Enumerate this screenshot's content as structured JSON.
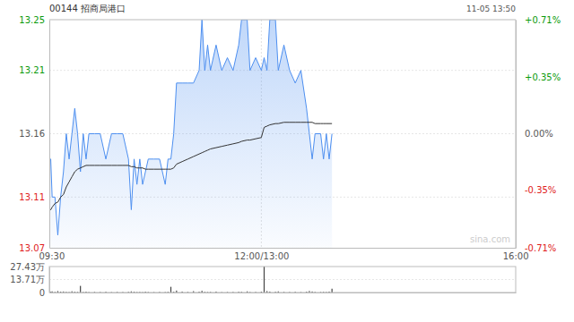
{
  "chart_data": [
    {
      "type": "line",
      "title": "00144 招商局港口",
      "subtitle": "11-05 13:50",
      "annotations": [
        "sina.com"
      ],
      "x": [
        0,
        1,
        2,
        4,
        6,
        8,
        10,
        12,
        14,
        16,
        18,
        20,
        22,
        24,
        26,
        28,
        32,
        36,
        40,
        44,
        48,
        52,
        56,
        58,
        60,
        62,
        64,
        66,
        68,
        70,
        74,
        78,
        82,
        84,
        86,
        88,
        90,
        94,
        98,
        102,
        106,
        108,
        110,
        112,
        114,
        118,
        122,
        126,
        130,
        134,
        136,
        140,
        142,
        146,
        150,
        152,
        154,
        156,
        160,
        162,
        166,
        170,
        174,
        178,
        182,
        184,
        186,
        188,
        192,
        194,
        196,
        198,
        200
      ],
      "xlim": [
        0,
        330
      ],
      "xticks": [
        {
          "value": 0,
          "label": "09:30"
        },
        {
          "value": 150,
          "label": "12:00/13:00"
        },
        {
          "value": 330,
          "label": "16:00"
        }
      ],
      "ylim": [
        13.07,
        13.25
      ],
      "yticks": [
        13.07,
        13.11,
        13.16,
        13.21,
        13.25
      ],
      "y2lim": [
        -0.71,
        0.71
      ],
      "y2ticks": [
        {
          "value": -0.71,
          "label": "-0.71%"
        },
        {
          "value": -0.35,
          "label": "-0.35%"
        },
        {
          "value": 0,
          "label": "0.00%"
        },
        {
          "value": 0.35,
          "label": "+0.35%"
        },
        {
          "value": 0.71,
          "label": "+0.71%"
        }
      ],
      "grid": true,
      "series": [
        {
          "type": "area",
          "color": "#4d8ff0",
          "values": [
            13.14,
            13.14,
            13.11,
            13.11,
            13.08,
            13.11,
            13.13,
            13.16,
            13.14,
            13.16,
            13.18,
            13.16,
            13.13,
            13.16,
            13.14,
            13.16,
            13.16,
            13.16,
            13.14,
            13.16,
            13.16,
            13.16,
            13.14,
            13.1,
            13.14,
            13.12,
            13.14,
            13.12,
            13.13,
            13.14,
            13.14,
            13.14,
            13.12,
            13.14,
            13.14,
            13.16,
            13.2,
            13.2,
            13.2,
            13.2,
            13.21,
            13.25,
            13.21,
            13.23,
            13.21,
            13.23,
            13.21,
            13.22,
            13.21,
            13.23,
            13.25,
            13.25,
            13.21,
            13.22,
            13.21,
            13.22,
            13.21,
            13.25,
            13.25,
            13.21,
            13.23,
            13.21,
            13.2,
            13.21,
            13.18,
            13.16,
            13.14,
            13.16,
            13.16,
            13.14,
            13.16,
            13.14,
            13.16
          ]
        },
        {
          "type": "line",
          "color": "#333333",
          "values": [
            13.1,
            13.1,
            13.102,
            13.105,
            13.106,
            13.11,
            13.112,
            13.118,
            13.122,
            13.126,
            13.13,
            13.132,
            13.133,
            13.134,
            13.135,
            13.135,
            13.135,
            13.135,
            13.135,
            13.135,
            13.135,
            13.135,
            13.135,
            13.134,
            13.134,
            13.133,
            13.133,
            13.133,
            13.132,
            13.132,
            13.132,
            13.132,
            13.132,
            13.132,
            13.132,
            13.133,
            13.136,
            13.138,
            13.14,
            13.142,
            13.144,
            13.145,
            13.146,
            13.147,
            13.148,
            13.149,
            13.15,
            13.151,
            13.152,
            13.153,
            13.154,
            13.155,
            13.155,
            13.156,
            13.157,
            13.165,
            13.166,
            13.167,
            13.168,
            13.168,
            13.169,
            13.169,
            13.169,
            13.169,
            13.169,
            13.169,
            13.169,
            13.168,
            13.168,
            13.168,
            13.168,
            13.168,
            13.168
          ]
        }
      ]
    },
    {
      "type": "bar",
      "x": [
        0,
        1,
        2,
        4,
        6,
        8,
        10,
        12,
        14,
        16,
        18,
        20,
        22,
        24,
        26,
        28,
        32,
        36,
        40,
        44,
        48,
        52,
        56,
        58,
        60,
        62,
        64,
        66,
        68,
        70,
        74,
        78,
        82,
        84,
        86,
        88,
        90,
        94,
        98,
        102,
        106,
        108,
        110,
        112,
        114,
        118,
        122,
        126,
        130,
        134,
        136,
        140,
        142,
        146,
        150,
        152,
        154,
        156,
        160,
        162,
        166,
        170,
        174,
        178,
        182,
        184,
        186,
        188,
        192,
        194,
        196,
        198,
        200
      ],
      "xlim": [
        0,
        330
      ],
      "values": [
        2.5,
        0.8,
        1.2,
        0.6,
        1.5,
        0.9,
        1.1,
        0.7,
        0.5,
        1.3,
        0.8,
        0.6,
        7.0,
        0.5,
        0.9,
        0.4,
        0.6,
        0.5,
        0.8,
        0.4,
        0.6,
        0.5,
        0.7,
        1.2,
        0.8,
        0.5,
        0.6,
        0.4,
        0.9,
        0.5,
        0.4,
        0.6,
        0.5,
        0.7,
        6.0,
        0.8,
        2.0,
        1.0,
        0.6,
        1.4,
        0.9,
        1.8,
        0.7,
        0.5,
        0.6,
        1.0,
        0.4,
        0.5,
        0.6,
        0.8,
        0.7,
        1.2,
        0.5,
        0.6,
        0.9,
        27.43,
        1.5,
        1.0,
        0.8,
        1.2,
        0.6,
        0.5,
        0.7,
        0.4,
        0.9,
        1.6,
        1.1,
        0.6,
        0.5,
        0.7,
        0.6,
        1.0,
        4.0
      ],
      "color": "#444444",
      "ylim": [
        0,
        27.43
      ],
      "yticks": [
        0,
        {
          "value": 13.71,
          "label": "13.71万"
        },
        {
          "value": 27.43,
          "label": "27.43万"
        }
      ],
      "tick_labels": "y",
      "grid": true
    }
  ]
}
